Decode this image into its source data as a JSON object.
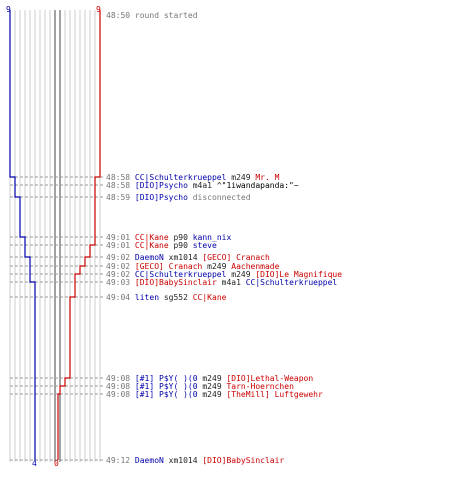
{
  "colors": {
    "blue": "#0000aa",
    "red": "#cc0000",
    "grid_light": "#cccccc",
    "grid_dark": "#444444",
    "dash": "#999999",
    "text_gray": "#777777"
  },
  "scores": {
    "blue_start": "9",
    "red_start": "9",
    "blue_end": "4",
    "red_end": "0"
  },
  "events": [
    {
      "time": "48:50",
      "parts": [
        {
          "text": "round started",
          "c": "t"
        }
      ]
    },
    {
      "time": "48:58",
      "parts": [
        {
          "text": "CC|Schulterkrueppel",
          "c": "blue"
        },
        {
          "text": " m249 ",
          "c": "wm"
        },
        {
          "text": "Mr. M",
          "c": "red"
        }
      ]
    },
    {
      "time": "48:58",
      "parts": [
        {
          "text": "[DIO]Psycho",
          "c": "blue"
        },
        {
          "text": " m4a1 ",
          "c": "wm"
        },
        {
          "text": "^\"1iwandapanda:\"~",
          "c": "dark"
        }
      ]
    },
    {
      "time": "48:59",
      "parts": [
        {
          "text": "[DIO]Psycho",
          "c": "blue"
        },
        {
          "text": " disconnected",
          "c": "t"
        }
      ]
    },
    {
      "time": "49:01",
      "parts": [
        {
          "text": "CC|Kane",
          "c": "red"
        },
        {
          "text": " p90 ",
          "c": "wm"
        },
        {
          "text": "kann_nix",
          "c": "blue"
        }
      ]
    },
    {
      "time": "49:01",
      "parts": [
        {
          "text": "CC|Kane",
          "c": "red"
        },
        {
          "text": " p90 ",
          "c": "wm"
        },
        {
          "text": "steve",
          "c": "blue"
        }
      ]
    },
    {
      "time": "49:02",
      "parts": [
        {
          "text": "DaemoN",
          "c": "blue"
        },
        {
          "text": " xm1014 ",
          "c": "wm"
        },
        {
          "text": "[GECO] Cranach",
          "c": "red"
        }
      ]
    },
    {
      "time": "49:02",
      "parts": [
        {
          "text": "[GECO] Cranach",
          "c": "red"
        },
        {
          "text": " m249 ",
          "c": "wm"
        },
        {
          "text": "Aachenmade",
          "c": "red"
        }
      ]
    },
    {
      "time": "49:02",
      "parts": [
        {
          "text": "CC|Schulterkrueppel",
          "c": "blue"
        },
        {
          "text": " m249 ",
          "c": "wm"
        },
        {
          "text": "[DIO]Le Magnifique",
          "c": "red"
        }
      ]
    },
    {
      "time": "49:03",
      "parts": [
        {
          "text": "[DIO]BabySinclair",
          "c": "red"
        },
        {
          "text": " m4a1 ",
          "c": "wm"
        },
        {
          "text": "CC|Schulterkrueppel",
          "c": "blue"
        }
      ]
    },
    {
      "time": "49:04",
      "parts": [
        {
          "text": "liten",
          "c": "blue"
        },
        {
          "text": " sg552 ",
          "c": "wm"
        },
        {
          "text": "CC|Kane",
          "c": "red"
        }
      ]
    },
    {
      "time": "49:08",
      "parts": [
        {
          "text": "[#1] P$Y( )(0",
          "c": "blue"
        },
        {
          "text": " m249 ",
          "c": "wm"
        },
        {
          "text": "[DIO]Lethal-Weapon",
          "c": "red"
        }
      ]
    },
    {
      "time": "49:08",
      "parts": [
        {
          "text": "[#1] P$Y( )(0",
          "c": "blue"
        },
        {
          "text": " m249 ",
          "c": "wm"
        },
        {
          "text": "Tarn-Hoernchen",
          "c": "red"
        }
      ]
    },
    {
      "time": "49:08",
      "parts": [
        {
          "text": "[#1] P$Y( )(0",
          "c": "blue"
        },
        {
          "text": " m249 ",
          "c": "wm"
        },
        {
          "text": "[TheMill] Luftgewehr",
          "c": "red"
        }
      ]
    },
    {
      "time": "49:12",
      "parts": [
        {
          "text": "DaemoN",
          "c": "blue"
        },
        {
          "text": " xm1014 ",
          "c": "wm"
        },
        {
          "text": "[DIO]BabySinclair",
          "c": "red"
        }
      ]
    }
  ]
}
